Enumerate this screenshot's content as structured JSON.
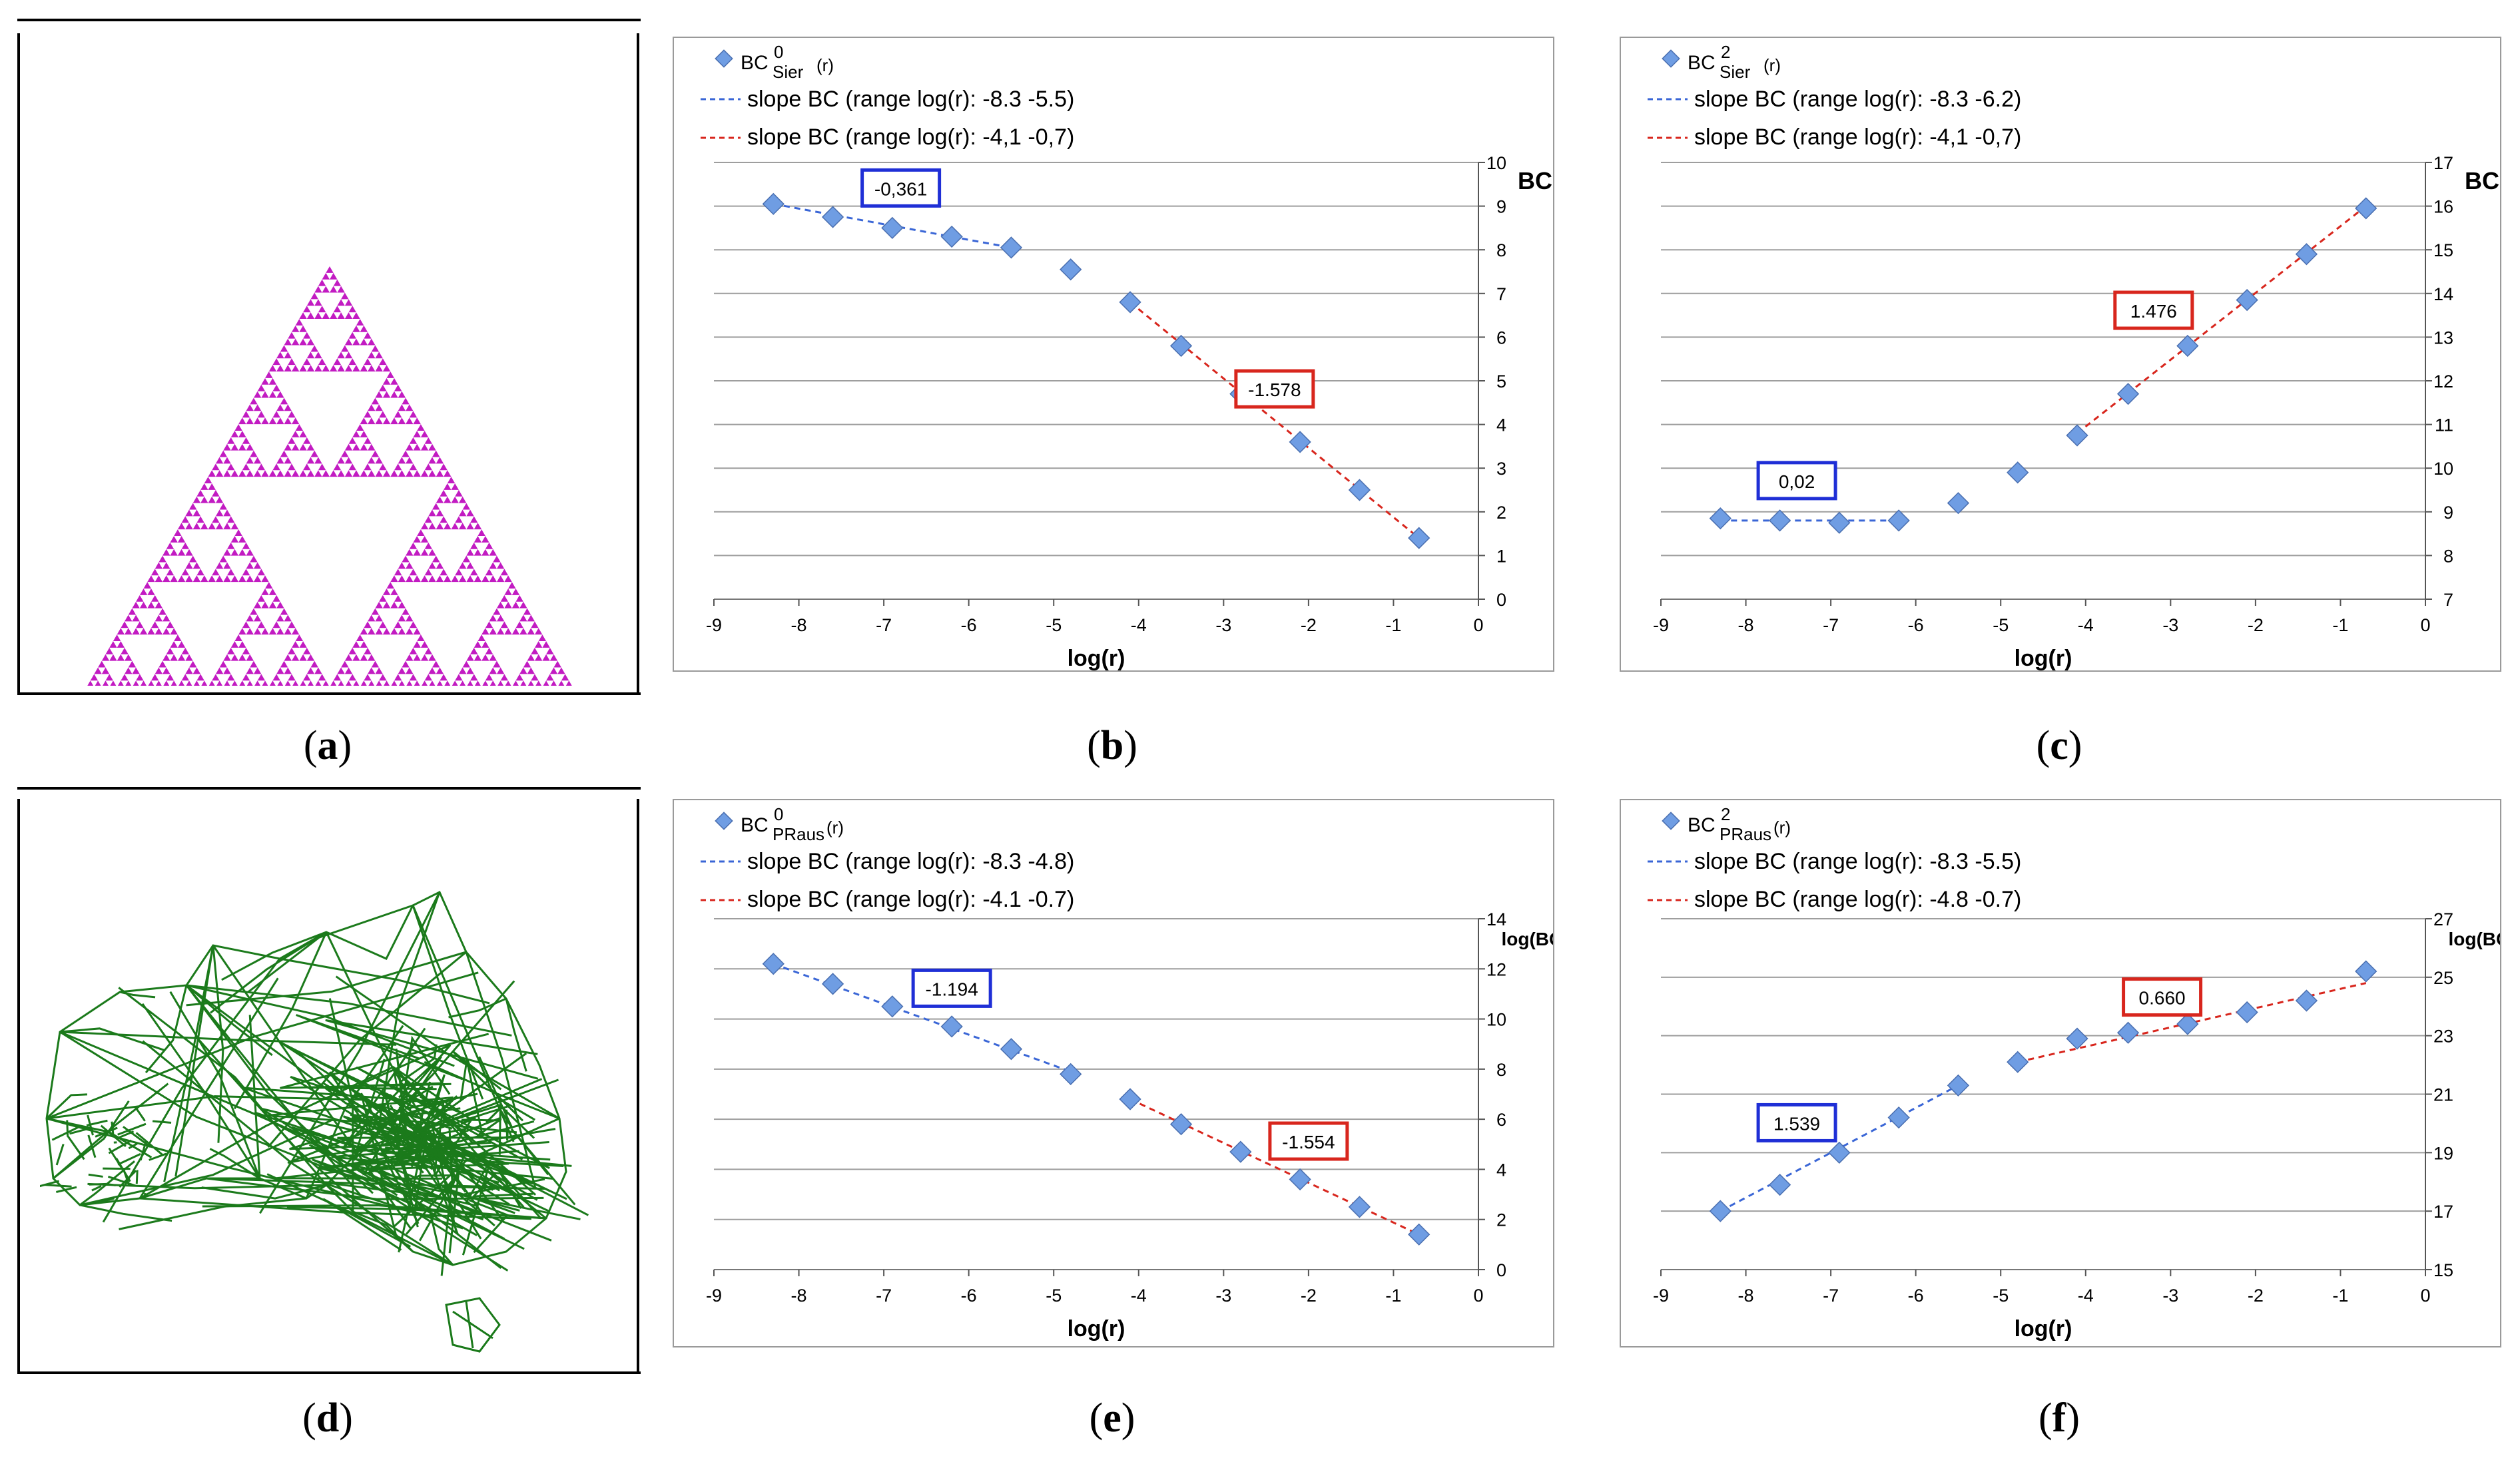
{
  "panels": {
    "a": {
      "label": "a"
    },
    "b": {
      "label": "b"
    },
    "c": {
      "label": "c"
    },
    "d": {
      "label": "d"
    },
    "e": {
      "label": "e"
    },
    "f": {
      "label": "f"
    }
  },
  "colors": {
    "sierpinski": "#c21bc2",
    "australia": "#1b7a1b",
    "blue_marker": "#6f9de3",
    "blue_line": "#3a66d6",
    "red_line": "#d8261d",
    "blue_box": "#1f2fd6",
    "red_box": "#d8261d",
    "grid": "#9e9e9e"
  },
  "chart_data": [
    {
      "id": "b",
      "type": "scatter",
      "legend": {
        "marker_base": "BC",
        "marker_sup": "0",
        "marker_sub": "Sier",
        "marker_tail": "(r)",
        "blue_line": "slope BC (range log(r): -8.3 -5.5)",
        "red_line": "slope BC (range log(r): -4,1 -0,7)"
      },
      "ylabel": "BC",
      "xlabel": "log(r)",
      "xlim": [
        -9,
        0
      ],
      "ylim": [
        0,
        10
      ],
      "ystep": 1,
      "xticks": [
        "-9",
        "-8",
        "-7",
        "-6",
        "-5",
        "-4",
        "-3",
        "-2",
        "-1",
        "0"
      ],
      "yticks": [
        "0",
        "1",
        "2",
        "3",
        "4",
        "5",
        "6",
        "7",
        "8",
        "9",
        "10"
      ],
      "points": {
        "x": [
          -8.3,
          -7.6,
          -6.9,
          -6.2,
          -5.5,
          -4.8,
          -4.1,
          -3.5,
          -2.8,
          -2.1,
          -1.4,
          -0.7
        ],
        "y": [
          9.05,
          8.75,
          8.5,
          8.3,
          8.05,
          7.55,
          6.8,
          5.8,
          4.7,
          3.6,
          2.5,
          1.4
        ]
      },
      "blue_fit": {
        "x": [
          -8.3,
          -5.5
        ],
        "y": [
          9.05,
          8.05
        ]
      },
      "red_fit": {
        "x": [
          -4.1,
          -0.7
        ],
        "y": [
          6.8,
          1.4
        ]
      },
      "blue_label": {
        "text": "-0,361",
        "x": -6.8,
        "y": 9.4
      },
      "red_label": {
        "text": "-1.578",
        "x": -2.4,
        "y": 4.8
      }
    },
    {
      "id": "c",
      "type": "scatter",
      "legend": {
        "marker_base": "BC",
        "marker_sup": "2",
        "marker_sub": "Sier",
        "marker_tail": "(r)",
        "blue_line": "slope BC (range log(r): -8.3 -6.2)",
        "red_line": "slope BC (range log(r): -4,1 -0,7)"
      },
      "ylabel": "BC",
      "xlabel": "log(r)",
      "xlim": [
        -9,
        0
      ],
      "ylim": [
        7,
        17
      ],
      "ystep": 1,
      "xticks": [
        "-9",
        "-8",
        "-7",
        "-6",
        "-5",
        "-4",
        "-3",
        "-2",
        "-1",
        "0"
      ],
      "yticks": [
        "7",
        "8",
        "9",
        "10",
        "11",
        "12",
        "13",
        "14",
        "15",
        "16",
        "17"
      ],
      "points": {
        "x": [
          -8.3,
          -7.6,
          -6.9,
          -6.2,
          -5.5,
          -4.8,
          -4.1,
          -3.5,
          -2.8,
          -2.1,
          -1.4,
          -0.7
        ],
        "y": [
          8.85,
          8.8,
          8.75,
          8.8,
          9.2,
          9.9,
          10.75,
          11.7,
          12.8,
          13.85,
          14.9,
          15.95
        ]
      },
      "blue_fit": {
        "x": [
          -8.3,
          -6.2
        ],
        "y": [
          8.8,
          8.8
        ]
      },
      "red_fit": {
        "x": [
          -4.1,
          -0.7
        ],
        "y": [
          10.8,
          16.0
        ]
      },
      "blue_label": {
        "text": "0,02",
        "x": -7.4,
        "y": 9.7
      },
      "red_label": {
        "text": "1.476",
        "x": -3.2,
        "y": 13.6
      }
    },
    {
      "id": "e",
      "type": "scatter",
      "legend": {
        "marker_base": "BC",
        "marker_sup": "0",
        "marker_sub": "PRaus",
        "marker_tail": "(r)",
        "blue_line": "slope BC (range log(r): -8.3 -4.8)",
        "red_line": "slope BC (range log(r): -4.1 -0.7)"
      },
      "ylabel": "log(BC)",
      "xlabel": "log(r)",
      "xlim": [
        -9,
        0
      ],
      "ylim": [
        0,
        14
      ],
      "ystep": 2,
      "xticks": [
        "-9",
        "-8",
        "-7",
        "-6",
        "-5",
        "-4",
        "-3",
        "-2",
        "-1",
        "0"
      ],
      "yticks": [
        "0",
        "2",
        "4",
        "6",
        "8",
        "10",
        "12",
        "14"
      ],
      "points": {
        "x": [
          -8.3,
          -7.6,
          -6.9,
          -6.2,
          -5.5,
          -4.8,
          -4.1,
          -3.5,
          -2.8,
          -2.1,
          -1.4,
          -0.7
        ],
        "y": [
          12.2,
          11.4,
          10.5,
          9.7,
          8.8,
          7.8,
          6.8,
          5.8,
          4.7,
          3.6,
          2.5,
          1.4
        ]
      },
      "blue_fit": {
        "x": [
          -8.3,
          -4.8
        ],
        "y": [
          12.2,
          7.9
        ]
      },
      "red_fit": {
        "x": [
          -4.1,
          -0.7
        ],
        "y": [
          6.8,
          1.4
        ]
      },
      "blue_label": {
        "text": "-1.194",
        "x": -6.2,
        "y": 11.2
      },
      "red_label": {
        "text": "-1.554",
        "x": -2.0,
        "y": 5.1
      }
    },
    {
      "id": "f",
      "type": "scatter",
      "legend": {
        "marker_base": "BC",
        "marker_sup": "2",
        "marker_sub": "PRaus",
        "marker_tail": "(r)",
        "blue_line": "slope BC (range log(r): -8.3 -5.5)",
        "red_line": "slope BC (range log(r): -4.8 -0.7)"
      },
      "ylabel": "log(BC)",
      "xlabel": "log(r)",
      "xlim": [
        -9,
        0
      ],
      "ylim": [
        15,
        27
      ],
      "ystep": 2,
      "xticks": [
        "-9",
        "-8",
        "-7",
        "-6",
        "-5",
        "-4",
        "-3",
        "-2",
        "-1",
        "0"
      ],
      "yticks": [
        "15",
        "17",
        "19",
        "21",
        "23",
        "25",
        "27"
      ],
      "points": {
        "x": [
          -8.3,
          -7.6,
          -6.9,
          -6.2,
          -5.5,
          -4.8,
          -4.1,
          -3.5,
          -2.8,
          -2.1,
          -1.4,
          -0.7
        ],
        "y": [
          17.0,
          17.9,
          19.0,
          20.2,
          21.3,
          22.1,
          22.9,
          23.1,
          23.4,
          23.8,
          24.2,
          25.2
        ]
      },
      "blue_fit": {
        "x": [
          -8.3,
          -5.5
        ],
        "y": [
          17.0,
          21.3
        ]
      },
      "red_fit": {
        "x": [
          -4.8,
          -0.7
        ],
        "y": [
          22.1,
          24.8
        ]
      },
      "blue_label": {
        "text": "1.539",
        "x": -7.4,
        "y": 20.0
      },
      "red_label": {
        "text": "0.660",
        "x": -3.1,
        "y": 24.3
      }
    }
  ]
}
